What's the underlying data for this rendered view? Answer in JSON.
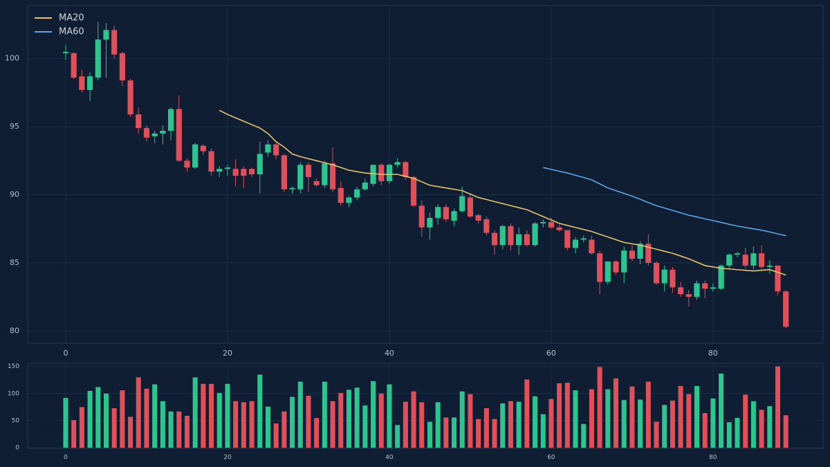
{
  "chart_data": [
    {
      "type": "candlestick",
      "up_color": "#2ec48f",
      "down_color": "#e0505a",
      "grid": true,
      "legend": "upper left",
      "x": [
        0,
        1,
        2,
        3,
        4,
        5,
        6,
        7,
        8,
        9,
        10,
        11,
        12,
        13,
        14,
        15,
        16,
        17,
        18,
        19,
        20,
        21,
        22,
        23,
        24,
        25,
        26,
        27,
        28,
        29,
        30,
        31,
        32,
        33,
        34,
        35,
        36,
        37,
        38,
        39,
        40,
        41,
        42,
        43,
        44,
        45,
        46,
        47,
        48,
        49,
        50,
        51,
        52,
        53,
        54,
        55,
        56,
        57,
        58,
        59,
        60,
        61,
        62,
        63,
        64,
        65,
        66,
        67,
        68,
        69,
        70,
        71,
        72,
        73,
        74,
        75,
        76,
        77,
        78,
        79,
        80,
        81,
        82,
        83,
        84,
        85,
        86,
        87,
        88,
        89
      ],
      "open": [
        100.4,
        100.4,
        98.7,
        97.7,
        98.6,
        101.4,
        102.1,
        100.4,
        98.4,
        95.9,
        94.9,
        94.3,
        94.5,
        94.7,
        96.3,
        92.5,
        92.0,
        93.6,
        93.2,
        91.7,
        91.9,
        91.9,
        91.9,
        91.9,
        91.5,
        93.1,
        93.7,
        92.9,
        90.4,
        90.4,
        92.2,
        91.0,
        90.7,
        92.3,
        90.5,
        89.4,
        89.8,
        90.4,
        90.8,
        92.2,
        91.0,
        92.2,
        92.4,
        91.3,
        89.2,
        87.6,
        88.3,
        89.1,
        88.1,
        88.8,
        89.8,
        88.5,
        88.2,
        87.2,
        86.3,
        87.7,
        86.3,
        87.1,
        86.3,
        87.9,
        88.0,
        87.6,
        87.4,
        86.1,
        86.7,
        86.7,
        85.7,
        83.6,
        85.1,
        84.3,
        85.9,
        85.3,
        86.4,
        85.0,
        83.5,
        84.5,
        83.2,
        82.7,
        82.5,
        83.5,
        83.1,
        83.1,
        84.8,
        85.6,
        85.6,
        84.8,
        85.7,
        84.7,
        84.8,
        82.9
      ],
      "high": [
        101.0,
        100.5,
        99.2,
        99.0,
        102.7,
        102.6,
        102.4,
        100.5,
        98.5,
        96.4,
        95.1,
        94.7,
        95.1,
        96.4,
        97.3,
        92.7,
        93.8,
        93.7,
        93.4,
        92.1,
        92.2,
        92.6,
        92.1,
        92.0,
        93.9,
        94.0,
        93.8,
        93.0,
        90.6,
        92.4,
        92.4,
        91.2,
        92.5,
        93.5,
        91.0,
        89.9,
        90.6,
        91.2,
        92.2,
        92.3,
        92.3,
        92.7,
        92.5,
        91.4,
        89.6,
        88.7,
        89.3,
        89.3,
        89.0,
        90.6,
        90.1,
        88.6,
        88.4,
        87.4,
        87.8,
        87.9,
        87.6,
        87.4,
        88.0,
        88.2,
        88.3,
        87.8,
        87.4,
        86.9,
        87.0,
        87.0,
        85.9,
        85.1,
        85.2,
        86.2,
        86.3,
        86.6,
        87.1,
        85.1,
        84.8,
        84.7,
        83.6,
        83.0,
        83.7,
        83.7,
        83.5,
        84.9,
        85.7,
        85.8,
        86.1,
        86.2,
        86.3,
        85.2,
        84.8,
        83.0
      ],
      "low": [
        99.9,
        98.5,
        97.5,
        96.9,
        98.4,
        98.6,
        100.0,
        98.0,
        95.7,
        94.5,
        93.9,
        93.8,
        93.7,
        94.0,
        92.4,
        91.7,
        91.9,
        92.9,
        91.4,
        91.3,
        91.4,
        90.6,
        90.5,
        91.3,
        90.1,
        92.8,
        92.6,
        90.2,
        90.1,
        90.1,
        90.2,
        90.6,
        90.5,
        90.2,
        89.2,
        89.1,
        89.6,
        90.3,
        90.6,
        90.7,
        90.8,
        92.0,
        91.1,
        89.1,
        86.9,
        86.7,
        87.8,
        88.0,
        87.7,
        88.7,
        88.3,
        87.9,
        87.0,
        85.6,
        86.0,
        85.9,
        85.6,
        86.2,
        86.2,
        87.6,
        87.5,
        87.3,
        85.9,
        85.7,
        86.5,
        85.6,
        82.7,
        83.4,
        84.1,
        83.5,
        85.1,
        84.9,
        84.8,
        83.4,
        82.9,
        82.8,
        82.5,
        81.8,
        82.3,
        82.4,
        82.9,
        83.0,
        84.6,
        85.4,
        84.6,
        84.5,
        84.4,
        84.2,
        82.6,
        80.2
      ],
      "close": [
        100.5,
        98.6,
        97.7,
        98.7,
        101.4,
        102.1,
        100.3,
        98.4,
        95.9,
        94.9,
        94.2,
        94.5,
        94.7,
        96.3,
        92.5,
        92.0,
        93.7,
        93.2,
        91.7,
        91.9,
        92.0,
        91.4,
        91.4,
        91.5,
        93.0,
        93.7,
        92.9,
        90.4,
        90.5,
        92.2,
        91.3,
        90.7,
        92.3,
        90.4,
        89.4,
        89.8,
        90.4,
        90.9,
        92.2,
        91.0,
        92.2,
        92.4,
        91.3,
        89.2,
        87.6,
        88.3,
        89.1,
        88.2,
        88.8,
        89.9,
        88.4,
        88.1,
        87.2,
        86.3,
        87.7,
        86.3,
        87.1,
        86.3,
        87.9,
        88.0,
        87.6,
        87.4,
        86.1,
        86.7,
        86.8,
        85.7,
        83.6,
        85.1,
        84.3,
        85.9,
        85.3,
        86.4,
        85.0,
        83.5,
        84.5,
        83.2,
        82.7,
        82.5,
        83.5,
        83.1,
        83.2,
        84.8,
        85.6,
        85.7,
        84.8,
        85.7,
        84.7,
        84.8,
        82.9,
        80.3
      ],
      "series": [
        {
          "name": "MA20",
          "color": "#e8c56a",
          "values": [
            null,
            null,
            null,
            null,
            null,
            null,
            null,
            null,
            null,
            null,
            null,
            null,
            null,
            null,
            null,
            null,
            null,
            null,
            null,
            96.2,
            95.9,
            95.65,
            95.4,
            95.15,
            94.9,
            94.5,
            93.9,
            93.5,
            93.0,
            92.8,
            92.65,
            92.5,
            92.35,
            92.2,
            92.0,
            91.8,
            91.7,
            91.6,
            91.55,
            91.5,
            91.5,
            91.5,
            91.35,
            91.2,
            90.95,
            90.7,
            90.6,
            90.5,
            90.4,
            90.3,
            90.05,
            89.8,
            89.65,
            89.5,
            89.35,
            89.2,
            89.05,
            88.9,
            88.65,
            88.4,
            88.15,
            87.9,
            87.75,
            87.6,
            87.45,
            87.3,
            87.1,
            86.9,
            86.7,
            86.5,
            86.4,
            86.3,
            86.15,
            86.0,
            85.85,
            85.7,
            85.5,
            85.3,
            85.05,
            84.8,
            84.7,
            84.6,
            84.55,
            84.5,
            84.45,
            84.4,
            84.45,
            84.5,
            84.3,
            84.1
          ]
        },
        {
          "name": "MA60",
          "color": "#5aa8e8",
          "values": [
            null,
            null,
            null,
            null,
            null,
            null,
            null,
            null,
            null,
            null,
            null,
            null,
            null,
            null,
            null,
            null,
            null,
            null,
            null,
            null,
            null,
            null,
            null,
            null,
            null,
            null,
            null,
            null,
            null,
            null,
            null,
            null,
            null,
            null,
            null,
            null,
            null,
            null,
            null,
            null,
            null,
            null,
            null,
            null,
            null,
            null,
            null,
            null,
            null,
            null,
            null,
            null,
            null,
            null,
            null,
            null,
            null,
            null,
            null,
            92.0,
            91.87,
            91.73,
            91.6,
            91.43,
            91.27,
            91.1,
            90.8,
            90.5,
            90.3,
            90.1,
            89.9,
            89.67,
            89.43,
            89.2,
            89.03,
            88.85,
            88.68,
            88.5,
            88.37,
            88.23,
            88.1,
            87.97,
            87.83,
            87.7,
            87.6,
            87.5,
            87.4,
            87.27,
            87.13,
            87.0
          ]
        }
      ],
      "xlim": [
        -4.7,
        93.6
      ],
      "xticks": [
        0,
        20,
        40,
        60,
        80
      ],
      "ylim": [
        79.1,
        103.9
      ],
      "yticks": [
        80,
        85,
        90,
        95,
        100
      ]
    },
    {
      "type": "bar",
      "grid": true,
      "x": [
        0,
        1,
        2,
        3,
        4,
        5,
        6,
        7,
        8,
        9,
        10,
        11,
        12,
        13,
        14,
        15,
        16,
        17,
        18,
        19,
        20,
        21,
        22,
        23,
        24,
        25,
        26,
        27,
        28,
        29,
        30,
        31,
        32,
        33,
        34,
        35,
        36,
        37,
        38,
        39,
        40,
        41,
        42,
        43,
        44,
        45,
        46,
        47,
        48,
        49,
        50,
        51,
        52,
        53,
        54,
        55,
        56,
        57,
        58,
        59,
        60,
        61,
        62,
        63,
        64,
        65,
        66,
        67,
        68,
        69,
        70,
        71,
        72,
        73,
        74,
        75,
        76,
        77,
        78,
        79,
        80,
        81,
        82,
        83,
        84,
        85,
        86,
        87,
        88,
        89
      ],
      "values": [
        92,
        51,
        75,
        105,
        112,
        100,
        73,
        106,
        57,
        130,
        109,
        117,
        86,
        67,
        67,
        59,
        130,
        118,
        118,
        101,
        118,
        86,
        84,
        86,
        135,
        76,
        45,
        67,
        94,
        122,
        96,
        55,
        122,
        86,
        101,
        107,
        111,
        78,
        123,
        100,
        117,
        42,
        85,
        104,
        84,
        48,
        84,
        56,
        56,
        104,
        99,
        53,
        73,
        53,
        82,
        86,
        85,
        126,
        95,
        62,
        90,
        119,
        120,
        106,
        44,
        108,
        149,
        108,
        128,
        88,
        113,
        89,
        122,
        48,
        79,
        87,
        114,
        99,
        114,
        64,
        91,
        137,
        47,
        55,
        98,
        86,
        70,
        77,
        150,
        60
      ],
      "xlim": [
        -4.7,
        93.6
      ],
      "xticks": [
        0,
        20,
        40,
        60,
        80
      ],
      "ylim": [
        -1,
        156
      ],
      "yticks": [
        0,
        50,
        100,
        150
      ]
    }
  ]
}
